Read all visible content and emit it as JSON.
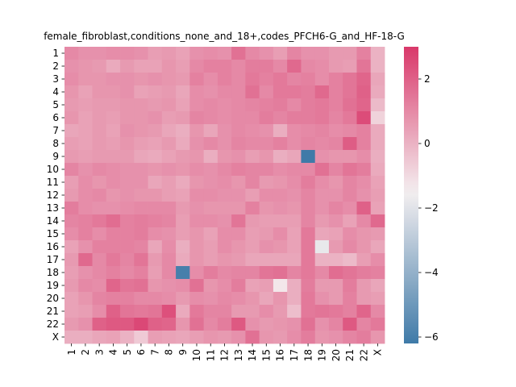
{
  "chart_data": {
    "type": "heatmap",
    "title": "female_fibroblast,conditions_none_and_18+,codes_PFCH6-G_and_HF-18-G",
    "xlabel": "",
    "ylabel": "",
    "rows": [
      "1",
      "2",
      "3",
      "4",
      "5",
      "6",
      "7",
      "8",
      "9",
      "10",
      "11",
      "12",
      "13",
      "14",
      "15",
      "16",
      "17",
      "18",
      "19",
      "20",
      "21",
      "22",
      "X"
    ],
    "cols": [
      "1",
      "2",
      "3",
      "4",
      "5",
      "6",
      "7",
      "8",
      "9",
      "10",
      "11",
      "12",
      "13",
      "14",
      "15",
      "16",
      "17",
      "18",
      "19",
      "20",
      "21",
      "22",
      "X"
    ],
    "colorbar": {
      "min": -6.2,
      "max": 3.0,
      "ticks": [
        2,
        0,
        -2,
        -4,
        -6
      ],
      "tick_labels": [
        "2",
        "0",
        "−2",
        "−4",
        "−6"
      ],
      "low_color": "#3f7aa8",
      "mid_color": "#f4eff0",
      "high_color": "#d9386a"
    },
    "values": [
      [
        1.0,
        0.8,
        0.8,
        0.9,
        0.9,
        0.8,
        0.5,
        0.6,
        0.4,
        0.8,
        0.9,
        0.8,
        1.6,
        1.0,
        0.8,
        0.5,
        1.1,
        0.8,
        0.8,
        0.6,
        0.6,
        1.2,
        0.0
      ],
      [
        0.8,
        0.7,
        0.6,
        0.2,
        0.6,
        0.4,
        0.4,
        0.7,
        0.5,
        1.0,
        1.2,
        1.2,
        1.0,
        1.3,
        1.3,
        1.0,
        1.8,
        1.0,
        0.9,
        0.6,
        0.5,
        1.5,
        0.0
      ],
      [
        0.9,
        0.7,
        0.7,
        0.8,
        0.8,
        0.7,
        0.8,
        0.7,
        0.6,
        1.2,
        0.9,
        1.2,
        1.0,
        1.4,
        1.2,
        1.4,
        1.1,
        1.2,
        0.9,
        1.2,
        1.5,
        1.9,
        0.3
      ],
      [
        0.7,
        0.4,
        0.7,
        0.7,
        0.8,
        0.4,
        0.5,
        0.6,
        0.3,
        0.9,
        0.8,
        1.0,
        1.0,
        1.6,
        1.0,
        1.4,
        1.4,
        1.3,
        1.8,
        1.2,
        1.5,
        2.0,
        0.2
      ],
      [
        0.6,
        0.5,
        0.6,
        0.6,
        0.7,
        0.7,
        0.6,
        0.7,
        0.4,
        0.9,
        1.0,
        0.9,
        1.0,
        1.1,
        1.2,
        1.3,
        1.0,
        1.3,
        1.4,
        1.2,
        1.6,
        1.9,
        -0.2
      ],
      [
        0.7,
        0.4,
        0.6,
        0.5,
        0.7,
        0.7,
        0.8,
        0.5,
        0.6,
        1.1,
        1.0,
        0.9,
        1.0,
        1.0,
        1.3,
        1.1,
        1.3,
        1.3,
        1.4,
        1.1,
        1.4,
        2.5,
        -0.8
      ],
      [
        0.3,
        0.4,
        0.6,
        0.4,
        0.8,
        0.7,
        0.6,
        0.3,
        0.1,
        0.7,
        0.3,
        0.8,
        1.0,
        0.9,
        0.8,
        0.1,
        0.9,
        1.0,
        1.1,
        0.9,
        1.0,
        1.2,
        0.2
      ],
      [
        0.5,
        0.4,
        0.6,
        0.5,
        0.7,
        0.5,
        0.4,
        0.6,
        0.2,
        0.8,
        1.0,
        0.8,
        1.1,
        1.0,
        1.0,
        1.2,
        0.9,
        1.1,
        1.0,
        1.1,
        2.1,
        1.2,
        0.2
      ],
      [
        0.6,
        0.5,
        0.6,
        0.6,
        0.6,
        0.3,
        0.2,
        0.4,
        0.6,
        0.7,
        0.1,
        0.7,
        0.8,
        0.5,
        0.7,
        0.1,
        0.3,
        -6.2,
        0.8,
        0.7,
        0.7,
        0.9,
        0.1
      ],
      [
        1.1,
        0.8,
        1.0,
        0.9,
        0.8,
        0.8,
        0.7,
        0.8,
        0.7,
        0.9,
        0.8,
        1.0,
        1.2,
        1.1,
        1.1,
        0.9,
        1.0,
        1.0,
        1.6,
        1.1,
        1.5,
        1.3,
        0.2
      ],
      [
        0.5,
        0.9,
        0.7,
        0.9,
        0.8,
        0.8,
        0.3,
        0.5,
        0.2,
        0.7,
        0.8,
        0.9,
        0.7,
        1.1,
        0.6,
        0.7,
        0.9,
        1.3,
        0.9,
        0.7,
        1.1,
        0.9,
        0.4
      ],
      [
        0.6,
        0.9,
        1.0,
        0.7,
        0.8,
        0.7,
        0.7,
        0.5,
        0.4,
        0.9,
        0.9,
        0.8,
        0.8,
        0.5,
        0.9,
        0.9,
        0.8,
        1.1,
        0.8,
        0.8,
        1.1,
        0.8,
        0.5
      ],
      [
        1.3,
        0.9,
        0.8,
        0.8,
        0.9,
        1.0,
        1.0,
        1.0,
        0.6,
        0.8,
        0.7,
        0.7,
        0.7,
        1.2,
        0.7,
        0.8,
        0.7,
        1.1,
        0.8,
        1.1,
        0.9,
        2.0,
        0.4
      ],
      [
        1.1,
        1.2,
        1.4,
        1.7,
        1.2,
        1.3,
        1.2,
        1.1,
        0.5,
        0.9,
        0.9,
        0.8,
        1.5,
        0.6,
        0.5,
        0.5,
        0.5,
        1.1,
        0.6,
        0.8,
        0.4,
        1.0,
        1.8
      ],
      [
        0.9,
        1.2,
        0.9,
        1.2,
        1.2,
        1.3,
        0.9,
        0.8,
        0.5,
        0.7,
        0.4,
        0.9,
        0.9,
        0.5,
        0.6,
        0.9,
        0.4,
        1.4,
        0.3,
        0.4,
        0.9,
        0.7,
        0.6
      ],
      [
        0.4,
        0.8,
        1.2,
        1.2,
        1.2,
        1.1,
        0.3,
        0.9,
        0.1,
        0.7,
        0.5,
        0.9,
        0.7,
        0.5,
        0.8,
        0.7,
        0.4,
        1.4,
        -1.8,
        0.6,
        1.0,
        0.7,
        0.3
      ],
      [
        0.6,
        1.8,
        1.0,
        1.4,
        1.1,
        1.5,
        0.6,
        1.0,
        0.2,
        0.7,
        0.5,
        0.7,
        0.6,
        0.3,
        0.3,
        0.3,
        0.3,
        1.4,
        0.0,
        0.0,
        -0.2,
        0.5,
        0.9
      ],
      [
        0.5,
        0.8,
        1.0,
        1.2,
        1.0,
        1.2,
        0.5,
        1.0,
        -6.0,
        0.9,
        1.3,
        1.0,
        1.1,
        1.1,
        1.5,
        1.6,
        1.1,
        1.4,
        1.0,
        1.7,
        1.5,
        1.3,
        1.2
      ],
      [
        0.6,
        1.0,
        0.9,
        1.9,
        1.5,
        1.6,
        0.7,
        0.8,
        0.9,
        1.6,
        0.7,
        0.9,
        1.3,
        0.4,
        0.5,
        -1.3,
        0.1,
        1.3,
        0.6,
        0.6,
        1.3,
        0.6,
        0.3
      ],
      [
        0.4,
        0.7,
        1.1,
        1.2,
        1.2,
        1.0,
        1.0,
        0.9,
        0.6,
        0.9,
        0.8,
        1.0,
        0.9,
        0.7,
        0.3,
        0.7,
        0.1,
        1.4,
        0.8,
        0.6,
        1.2,
        0.6,
        0.5
      ],
      [
        0.4,
        0.5,
        0.9,
        2.0,
        1.5,
        1.4,
        1.5,
        2.4,
        0.2,
        1.4,
        1.1,
        1.1,
        0.6,
        0.6,
        0.9,
        0.6,
        -0.3,
        1.4,
        1.5,
        1.4,
        1.2,
        1.9,
        1.0
      ],
      [
        0.6,
        0.8,
        2.0,
        2.2,
        2.2,
        2.6,
        2.0,
        1.9,
        0.7,
        1.6,
        1.0,
        1.3,
        2.2,
        0.8,
        0.6,
        0.7,
        0.8,
        1.6,
        0.8,
        1.1,
        2.2,
        1.1,
        1.4
      ],
      [
        0.1,
        0.1,
        0.3,
        0.4,
        0.0,
        -0.6,
        0.5,
        0.4,
        0.3,
        0.5,
        0.7,
        0.6,
        0.8,
        1.6,
        0.7,
        0.6,
        0.9,
        1.3,
        0.7,
        0.8,
        1.1,
        1.3,
        0.7
      ]
    ]
  }
}
